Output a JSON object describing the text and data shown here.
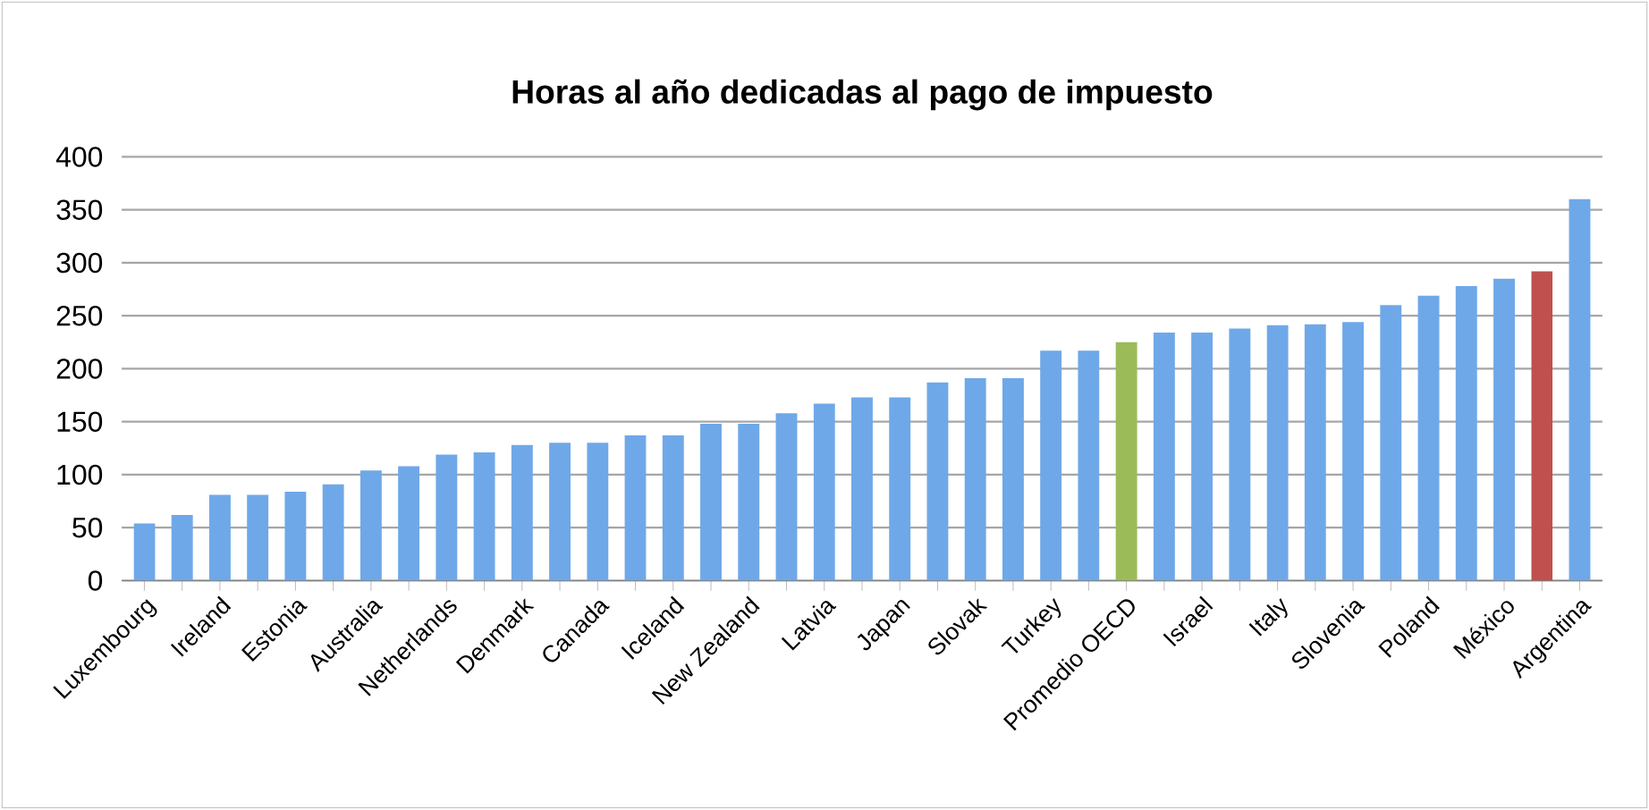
{
  "chart_data": {
    "type": "bar",
    "title": "Horas al año dedicadas al pago de impuesto",
    "categories": [
      "Luxembourg",
      null,
      "Ireland",
      null,
      "Estonia",
      null,
      "Australia",
      null,
      "Netherlands",
      null,
      "Denmark",
      null,
      "Canada",
      null,
      "Iceland",
      null,
      "New Zealand",
      null,
      "Latvia",
      null,
      "Japan",
      null,
      "Slovak",
      null,
      "Turkey",
      null,
      "Promedio OECD",
      null,
      "Israel",
      null,
      "Italy",
      null,
      "Slovenia",
      null,
      "Poland",
      null,
      "México",
      null,
      "Argentina"
    ],
    "values": [
      54,
      62,
      81,
      81,
      84,
      91,
      104,
      108,
      119,
      121,
      128,
      130,
      130,
      137,
      137,
      148,
      148,
      158,
      167,
      173,
      173,
      187,
      191,
      191,
      217,
      217,
      225,
      234,
      234,
      238,
      241,
      242,
      244,
      260,
      269,
      278,
      285,
      292,
      360
    ],
    "colors": [
      "#6fa8e8",
      "#6fa8e8",
      "#6fa8e8",
      "#6fa8e8",
      "#6fa8e8",
      "#6fa8e8",
      "#6fa8e8",
      "#6fa8e8",
      "#6fa8e8",
      "#6fa8e8",
      "#6fa8e8",
      "#6fa8e8",
      "#6fa8e8",
      "#6fa8e8",
      "#6fa8e8",
      "#6fa8e8",
      "#6fa8e8",
      "#6fa8e8",
      "#6fa8e8",
      "#6fa8e8",
      "#6fa8e8",
      "#6fa8e8",
      "#6fa8e8",
      "#6fa8e8",
      "#6fa8e8",
      "#6fa8e8",
      "#9bbb59",
      "#6fa8e8",
      "#6fa8e8",
      "#6fa8e8",
      "#6fa8e8",
      "#6fa8e8",
      "#6fa8e8",
      "#6fa8e8",
      "#6fa8e8",
      "#6fa8e8",
      "#6fa8e8",
      "#c0504d",
      "#6fa8e8"
    ],
    "ylim": [
      0,
      400
    ],
    "yticks": [
      0,
      50,
      100,
      150,
      200,
      250,
      300,
      350,
      400
    ],
    "grid": "y"
  }
}
